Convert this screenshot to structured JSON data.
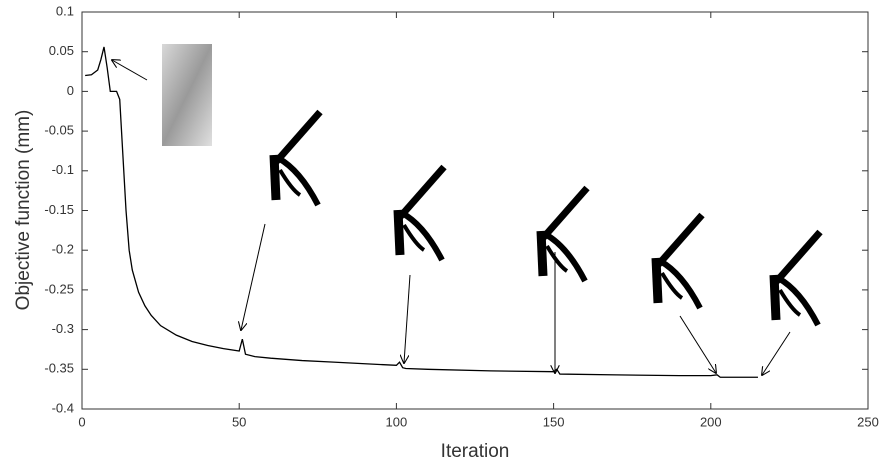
{
  "chart_data": {
    "type": "line",
    "xlabel": "Iteration",
    "ylabel": "Objective function (mm)",
    "x": [
      1,
      3,
      5,
      6,
      7,
      8,
      9,
      10,
      11,
      12,
      13,
      14,
      15,
      16,
      18,
      20,
      22,
      25,
      30,
      35,
      40,
      45,
      50,
      51,
      52,
      55,
      60,
      70,
      80,
      90,
      100,
      101,
      102,
      103,
      110,
      130,
      150,
      151,
      152,
      170,
      190,
      200,
      202,
      203,
      215
    ],
    "values": [
      0.02,
      0.021,
      0.027,
      0.04,
      0.056,
      0.03,
      0.0,
      0.0,
      0.0,
      -0.01,
      -0.08,
      -0.15,
      -0.2,
      -0.225,
      -0.253,
      -0.27,
      -0.282,
      -0.295,
      -0.307,
      -0.315,
      -0.32,
      -0.324,
      -0.327,
      -0.312,
      -0.331,
      -0.334,
      -0.336,
      -0.339,
      -0.341,
      -0.343,
      -0.345,
      -0.341,
      -0.348,
      -0.349,
      -0.35,
      -0.352,
      -0.353,
      -0.35,
      -0.356,
      -0.357,
      -0.358,
      -0.358,
      -0.357,
      -0.36,
      -0.36
    ],
    "color": "#000000",
    "xlim": [
      0,
      250
    ],
    "ylim": [
      -0.4,
      0.1
    ],
    "xticks": [
      0,
      50,
      100,
      150,
      200,
      250
    ],
    "yticks": [
      -0.4,
      -0.35,
      -0.3,
      -0.25,
      -0.2,
      -0.15,
      -0.1,
      -0.05,
      0,
      0.05,
      0.1
    ]
  }
}
